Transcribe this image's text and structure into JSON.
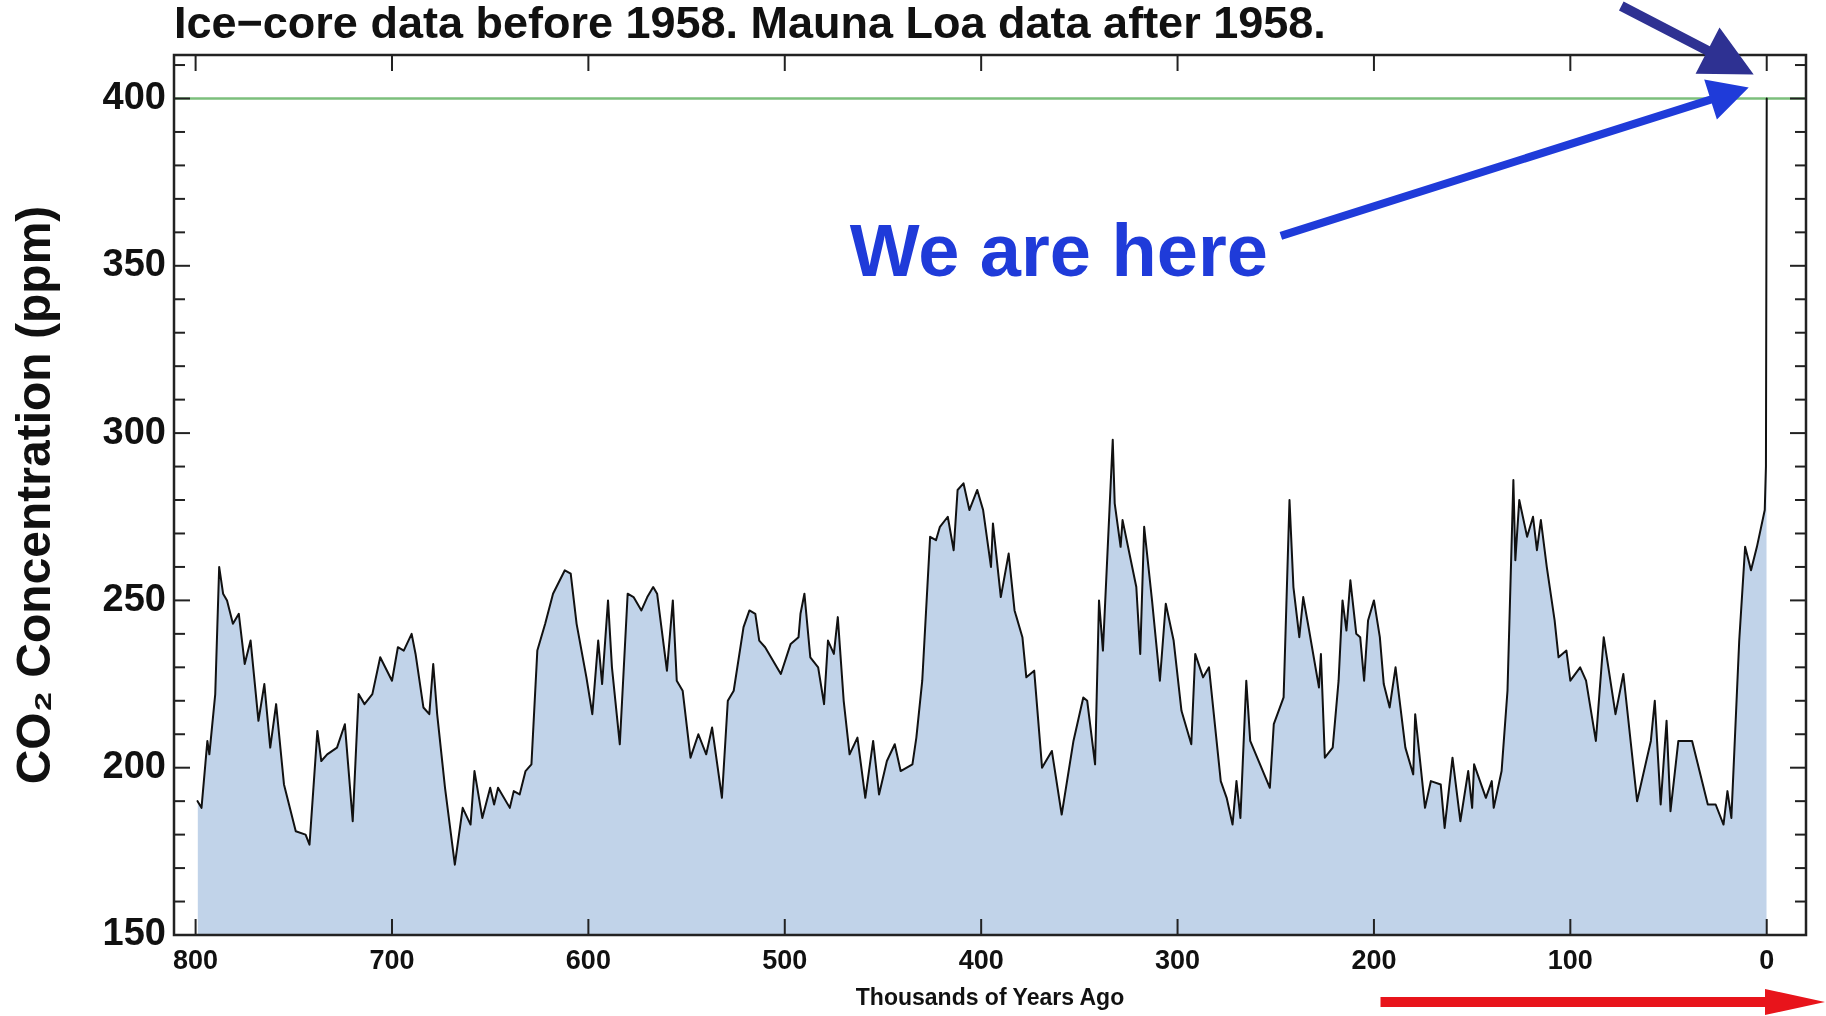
{
  "chart_data": {
    "type": "area",
    "title": "Ice−core data before 1958. Mauna Loa data after 1958.",
    "xlabel": "Thousands of Years Ago",
    "ylabel": "CO₂ Concentration (ppm)",
    "annotations": [
      "We are here"
    ],
    "x": [
      799,
      797,
      794,
      793,
      790,
      788,
      786,
      784,
      781,
      778,
      775,
      772,
      768,
      765,
      762,
      759,
      755,
      749,
      744,
      742,
      738,
      736,
      733,
      728,
      724,
      720,
      717,
      714,
      710,
      706,
      700,
      697,
      694,
      690,
      688,
      684,
      681,
      679,
      677,
      673,
      668,
      664,
      660,
      658,
      654,
      650,
      648,
      646,
      640,
      638,
      635,
      632,
      629,
      626,
      622,
      618,
      612,
      609,
      606,
      601,
      598,
      595,
      593,
      590,
      588,
      584,
      580,
      577,
      573,
      570,
      567,
      565,
      560,
      557,
      555,
      552,
      548,
      544,
      540,
      537,
      532,
      529,
      526,
      521,
      518,
      515,
      513,
      510,
      502,
      497,
      493,
      492,
      490,
      487,
      483,
      480,
      478,
      475,
      473,
      470,
      467,
      463,
      459,
      455,
      452,
      448,
      444,
      441,
      435,
      433,
      430,
      426,
      423,
      421,
      417,
      414,
      412,
      409,
      406,
      402,
      399,
      395,
      394,
      390,
      386,
      383,
      379,
      377,
      373,
      369,
      364,
      359,
      353,
      348,
      346,
      342,
      340,
      338,
      333,
      332,
      329,
      328,
      321,
      319,
      317,
      313,
      309,
      306,
      302,
      298,
      293,
      291,
      287,
      284,
      278,
      275,
      272,
      270,
      268,
      265,
      263,
      258,
      253,
      251,
      246,
      243,
      241,
      238,
      236,
      233,
      228,
      227,
      225,
      221,
      218,
      216,
      214,
      212,
      209,
      207,
      205,
      203,
      200,
      197,
      195,
      192,
      189,
      184,
      180,
      179,
      174,
      171,
      166,
      164,
      160,
      156,
      152,
      150,
      149,
      143,
      140,
      139,
      135,
      132,
      129,
      128,
      126,
      122,
      119,
      117,
      115,
      112,
      108,
      106,
      102,
      100,
      95,
      92,
      87,
      83,
      77,
      73,
      66,
      59,
      57,
      54,
      51,
      49,
      45,
      38,
      30,
      26,
      22,
      20,
      18,
      14,
      11,
      8,
      5,
      1,
      0.4,
      0
    ],
    "series": [
      {
        "color": "#c1d3e9",
        "values": [
          190,
          188,
          208,
          204,
          222,
          260,
          252,
          250,
          243,
          246,
          231,
          238,
          214,
          225,
          206,
          219,
          195,
          181,
          180,
          177,
          211,
          202,
          204,
          206,
          213,
          184,
          222,
          219,
          222,
          233,
          226,
          236,
          235,
          240,
          234,
          218,
          216,
          231,
          216,
          194,
          171,
          188,
          183,
          199,
          185,
          194,
          189,
          194,
          188,
          193,
          192,
          199,
          201,
          235,
          243,
          252,
          259,
          258,
          243,
          227,
          216,
          238,
          225,
          250,
          230,
          207,
          252,
          251,
          247,
          251,
          254,
          252,
          229,
          250,
          226,
          223,
          203,
          210,
          204,
          212,
          191,
          220,
          223,
          242,
          247,
          246,
          238,
          236,
          228,
          237,
          239,
          246,
          252,
          233,
          230,
          219,
          238,
          234,
          245,
          220,
          204,
          209,
          191,
          208,
          192,
          202,
          207,
          199,
          201,
          209,
          226,
          269,
          268,
          272,
          275,
          265,
          283,
          285,
          277,
          283,
          277,
          260,
          273,
          251,
          264,
          247,
          239,
          227,
          229,
          200,
          205,
          186,
          208,
          221,
          220,
          201,
          250,
          235,
          298,
          279,
          266,
          274,
          254,
          234,
          272,
          250,
          226,
          249,
          238,
          217,
          207,
          234,
          227,
          230,
          196,
          191,
          183,
          196,
          185,
          226,
          208,
          201,
          194,
          213,
          221,
          280,
          254,
          239,
          251,
          241,
          224,
          234,
          203,
          206,
          226,
          250,
          241,
          256,
          240,
          239,
          226,
          244,
          250,
          239,
          225,
          218,
          230,
          206,
          198,
          216,
          188,
          196,
          195,
          182,
          203,
          184,
          199,
          188,
          201,
          191,
          196,
          188,
          199,
          223,
          286,
          262,
          280,
          269,
          275,
          265,
          274,
          260,
          244,
          233,
          235,
          226,
          230,
          226,
          208,
          239,
          216,
          228,
          190,
          208,
          220,
          189,
          214,
          187,
          208,
          208,
          189,
          189,
          183,
          193,
          185,
          238,
          266,
          259,
          266,
          277,
          290,
          400
        ]
      }
    ],
    "xlim": [
      811,
      -20
    ],
    "ylim": [
      150,
      413
    ],
    "xticks": [
      800,
      700,
      600,
      500,
      400,
      300,
      200,
      100,
      0
    ],
    "yticks": [
      150,
      {
        "value": 160,
        "label": null
      },
      {
        "value": 170,
        "label": null
      },
      {
        "value": 180,
        "label": null
      },
      {
        "value": 190,
        "label": null
      },
      200,
      {
        "value": 210,
        "label": null
      },
      {
        "value": 220,
        "label": null
      },
      {
        "value": 230,
        "label": null
      },
      {
        "value": 240,
        "label": null
      },
      250,
      {
        "value": 260,
        "label": null
      },
      {
        "value": 270,
        "label": null
      },
      {
        "value": 280,
        "label": null
      },
      {
        "value": 290,
        "label": null
      },
      300,
      {
        "value": 310,
        "label": null
      },
      {
        "value": 320,
        "label": null
      },
      {
        "value": 330,
        "label": null
      },
      {
        "value": 340,
        "label": null
      },
      350,
      {
        "value": 360,
        "label": null
      },
      {
        "value": 370,
        "label": null
      },
      {
        "value": 380,
        "label": null
      },
      {
        "value": 390,
        "label": null
      },
      400,
      {
        "value": 410,
        "label": null
      }
    ],
    "ref_lines": [
      {
        "axis": "y",
        "value": 400,
        "color": "#7cbf7c"
      }
    ]
  }
}
